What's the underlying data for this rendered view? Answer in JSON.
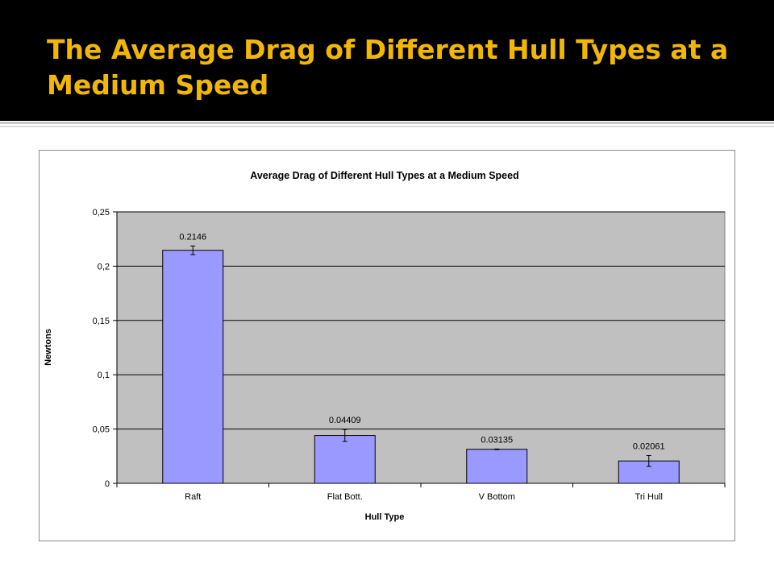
{
  "slide": {
    "title": "The Average Drag of Different Hull Types at a Medium Speed"
  },
  "colors": {
    "title_bar": "#000000",
    "title_text": "#f2b705",
    "plot_area": "#c0c0c0",
    "bar_fill": "#9999ff",
    "bar_stroke": "#000000"
  },
  "chart_data": {
    "type": "bar",
    "title": "Average Drag of Different Hull Types at a Medium Speed",
    "xlabel": "Hull Type",
    "ylabel": "Newtons",
    "categories": [
      "Raft",
      "Flat Bott.",
      "V Bottom",
      "Tri Hull"
    ],
    "values": [
      0.2146,
      0.04409,
      0.03135,
      0.02061
    ],
    "value_labels": [
      "0.2146",
      "0.04409",
      "0.03135",
      "0.02061"
    ],
    "error": [
      0.004,
      0.0055,
      0.0003,
      0.005
    ],
    "ylim": [
      0,
      0.25
    ],
    "yticks": [
      0,
      0.05,
      0.1,
      0.15,
      0.2,
      0.25
    ],
    "ytick_labels": [
      "0",
      "0,05",
      "0,1",
      "0,15",
      "0,2",
      "0,25"
    ],
    "grid": true,
    "legend": "none"
  }
}
